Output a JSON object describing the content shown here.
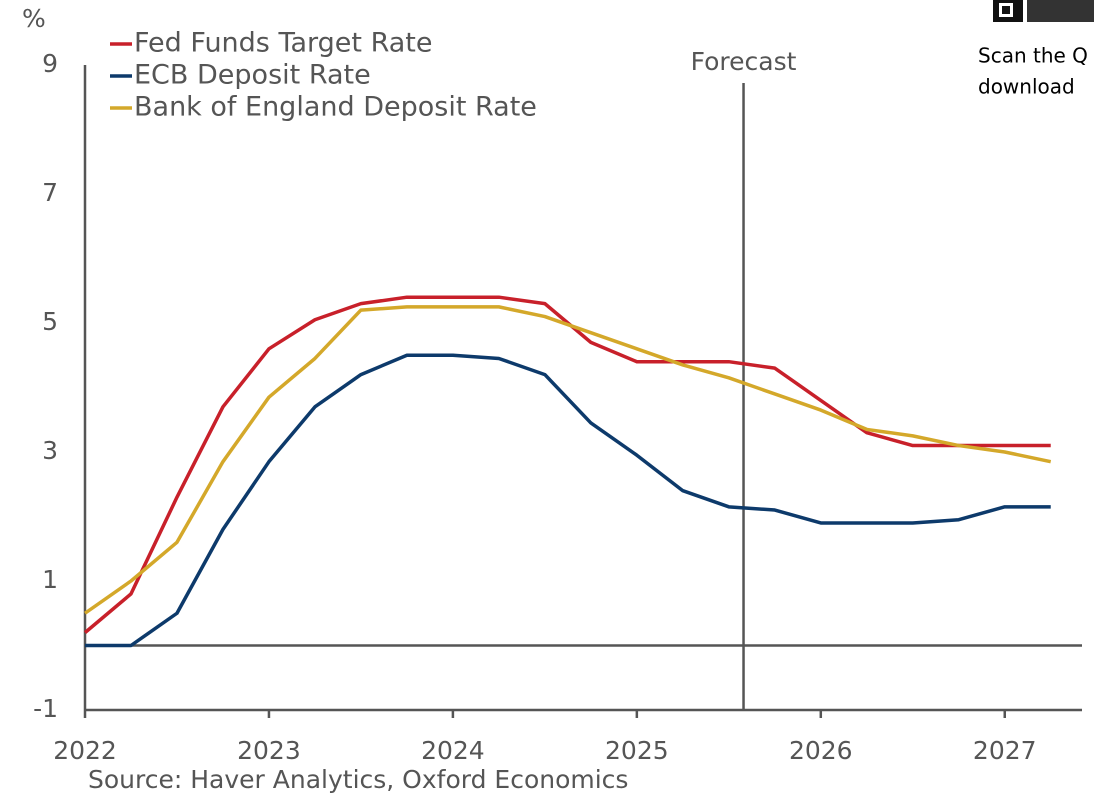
{
  "chart_data": {
    "type": "line",
    "unit_label": "%",
    "x": [
      2022,
      2022.25,
      2022.5,
      2022.75,
      2023,
      2023.25,
      2023.5,
      2023.75,
      2024,
      2024.25,
      2024.5,
      2024.75,
      2025,
      2025.25,
      2025.5,
      2025.75,
      2026,
      2026.25,
      2026.5,
      2026.75,
      2027,
      2027.25
    ],
    "series": [
      {
        "name": "Fed Funds Target Rate",
        "color": "#c8202a",
        "values": [
          0.2,
          0.8,
          2.3,
          3.7,
          4.6,
          5.05,
          5.3,
          5.4,
          5.4,
          5.4,
          5.3,
          4.7,
          4.4,
          4.4,
          4.4,
          4.3,
          3.8,
          3.3,
          3.1,
          3.1,
          3.1,
          3.1
        ]
      },
      {
        "name": "ECB Deposit Rate",
        "color": "#0d3a6b",
        "values": [
          0,
          0,
          0.5,
          1.8,
          2.85,
          3.7,
          4.2,
          4.5,
          4.5,
          4.45,
          4.2,
          3.45,
          2.95,
          2.4,
          2.15,
          2.1,
          1.9,
          1.9,
          1.9,
          1.95,
          2.15,
          2.15
        ]
      },
      {
        "name": "Bank of England Deposit Rate",
        "color": "#d4a82a",
        "values": [
          0.5,
          1.0,
          1.6,
          2.85,
          3.85,
          4.45,
          5.2,
          5.25,
          5.25,
          5.25,
          5.1,
          4.85,
          4.6,
          4.35,
          4.15,
          3.9,
          3.65,
          3.35,
          3.25,
          3.1,
          3.0,
          2.85
        ]
      }
    ],
    "xlim": [
      2022,
      2027.42
    ],
    "xticks": [
      2022,
      2023,
      2024,
      2025,
      2026,
      2027
    ],
    "ylim": [
      -1,
      9
    ],
    "yticks": [
      -1,
      1,
      3,
      5,
      7,
      9
    ],
    "forecast": {
      "label": "Forecast",
      "x": 2025.58
    },
    "source": "Source: Haver Analytics, Oxford Economics",
    "qr_note": [
      "Scan the Q",
      "download"
    ]
  }
}
